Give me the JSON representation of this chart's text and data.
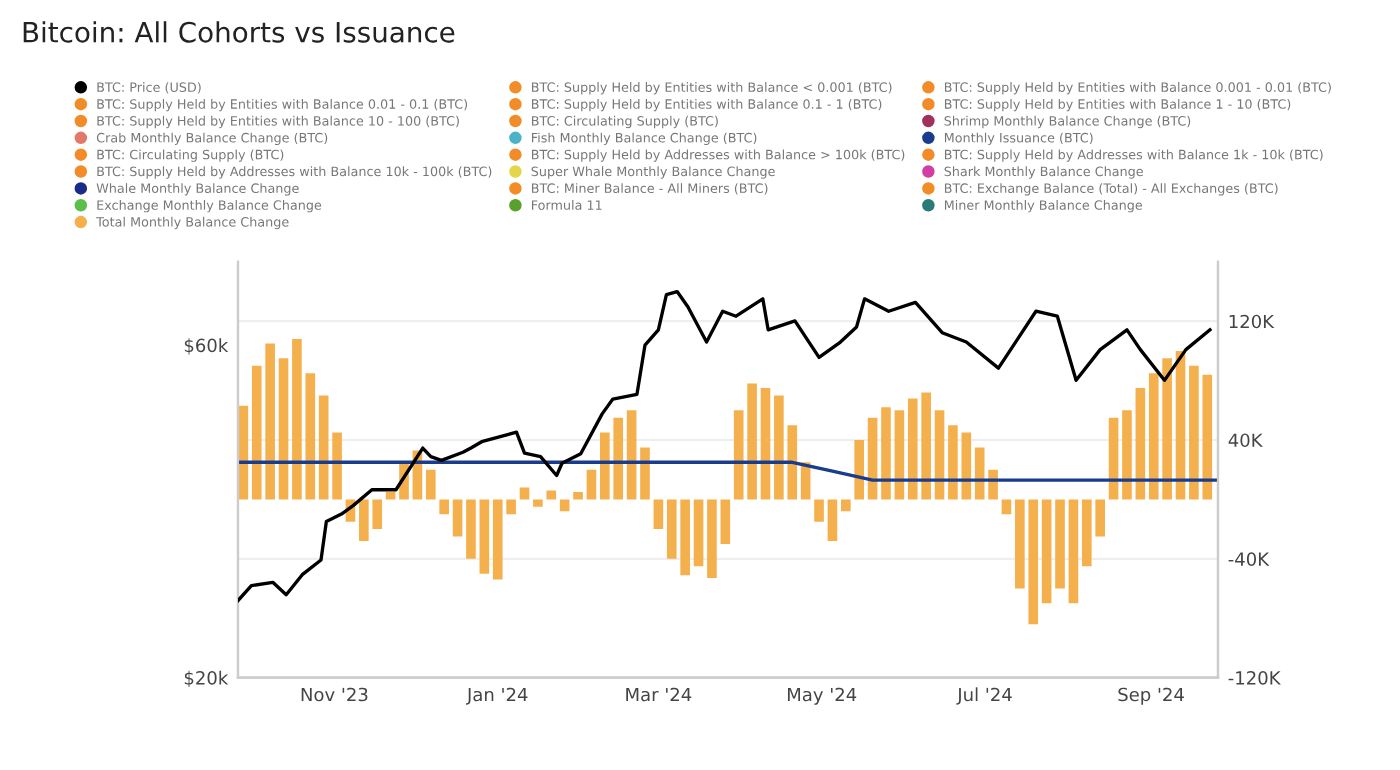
{
  "chart_data": {
    "type": "line",
    "title": "Bitcoin: All Cohorts vs Issuance",
    "xlim": [
      "2023-09-26",
      "2024-09-26"
    ],
    "xticks": [
      {
        "value": "2023-11-01",
        "label": "Nov '23"
      },
      {
        "value": "2024-01-01",
        "label": "Jan '24"
      },
      {
        "value": "2024-03-01",
        "label": "Mar '24"
      },
      {
        "value": "2024-05-01",
        "label": "May '24"
      },
      {
        "value": "2024-07-01",
        "label": "Jul '24"
      },
      {
        "value": "2024-09-01",
        "label": "Sep '24"
      }
    ],
    "log": "y",
    "ylim": [
      20000,
      79000
    ],
    "yticks": [
      {
        "value": 20000,
        "label": "$20k"
      },
      {
        "value": 60000,
        "label": "$60k"
      }
    ],
    "y2lim": [
      -120000,
      160000
    ],
    "y2ticks": [
      {
        "value": -120000,
        "label": "-120K"
      },
      {
        "value": -40000,
        "label": "-40K"
      },
      {
        "value": 40000,
        "label": "40K"
      },
      {
        "value": 120000,
        "label": "120K"
      }
    ],
    "grid": "y",
    "legend": "top",
    "series": [
      {
        "name": "BTC: Price (USD)",
        "color": "#000000",
        "x": [
          "2023-09-26",
          "2023-10-01",
          "2023-10-09",
          "2023-10-14",
          "2023-10-20",
          "2023-10-27",
          "2023-10-29",
          "2023-11-04",
          "2023-11-08",
          "2023-11-15",
          "2023-11-24",
          "2023-12-04",
          "2023-12-07",
          "2023-12-11",
          "2023-12-19",
          "2023-12-22",
          "2023-12-26",
          "2024-01-08",
          "2024-01-11",
          "2024-01-17",
          "2024-01-23",
          "2024-01-25",
          "2024-02-01",
          "2024-02-09",
          "2024-02-13",
          "2024-02-22",
          "2024-02-25",
          "2024-03-01",
          "2024-03-04",
          "2024-03-08",
          "2024-03-12",
          "2024-03-19",
          "2024-03-25",
          "2024-03-30",
          "2024-04-09",
          "2024-04-11",
          "2024-04-21",
          "2024-04-30",
          "2024-05-08",
          "2024-05-14",
          "2024-05-17",
          "2024-05-26",
          "2024-06-05",
          "2024-06-15",
          "2024-06-24",
          "2024-07-06",
          "2024-07-20",
          "2024-07-28",
          "2024-08-04",
          "2024-08-13",
          "2024-08-23",
          "2024-08-28",
          "2024-09-06",
          "2024-09-14",
          "2024-09-23"
        ],
        "values": [
          25800,
          27100,
          27400,
          26300,
          28100,
          29500,
          33500,
          34400,
          35300,
          37200,
          37200,
          42700,
          41500,
          41000,
          42100,
          42700,
          43600,
          45000,
          42000,
          41500,
          39000,
          40600,
          41900,
          47800,
          50200,
          51000,
          60000,
          63100,
          70900,
          71600,
          68100,
          60600,
          67100,
          66000,
          69900,
          63100,
          65000,
          57600,
          60600,
          63700,
          69900,
          67100,
          69100,
          62500,
          60600,
          55600,
          67100,
          66000,
          53400,
          59100,
          63100,
          59100,
          53400,
          59100,
          63100
        ]
      },
      {
        "name": "BTC: Supply Held by Entities with Balance 0.01 - 0.1 (BTC)",
        "color": "#f28c28"
      },
      {
        "name": "BTC: Supply Held by Entities with Balance 10 - 100 (BTC)",
        "color": "#f28c28"
      },
      {
        "name": "Crab Monthly Balance Change (BTC)",
        "color": "#e2786a"
      },
      {
        "name": "BTC: Circulating Supply (BTC)",
        "color": "#f28c28"
      },
      {
        "name": "BTC: Supply Held by Addresses with Balance 10k - 100k (BTC)",
        "color": "#f28c28"
      },
      {
        "name": "Whale Monthly Balance Change",
        "color": "#1c2a8a"
      },
      {
        "name": "Exchange Monthly Balance Change",
        "color": "#5cbf4c"
      },
      {
        "name": "Total Monthly Balance Change",
        "color": "#f5b04e",
        "type": "bar",
        "axis": "y2",
        "x": [
          "2023-09-28",
          "2023-10-03",
          "2023-10-08",
          "2023-10-13",
          "2023-10-18",
          "2023-10-23",
          "2023-10-28",
          "2023-11-02",
          "2023-11-07",
          "2023-11-12",
          "2023-11-17",
          "2023-11-22",
          "2023-11-27",
          "2023-12-02",
          "2023-12-07",
          "2023-12-12",
          "2023-12-17",
          "2023-12-22",
          "2023-12-27",
          "2024-01-01",
          "2024-01-06",
          "2024-01-11",
          "2024-01-16",
          "2024-01-21",
          "2024-01-26",
          "2024-01-31",
          "2024-02-05",
          "2024-02-10",
          "2024-02-15",
          "2024-02-20",
          "2024-02-25",
          "2024-03-01",
          "2024-03-06",
          "2024-03-11",
          "2024-03-16",
          "2024-03-21",
          "2024-03-26",
          "2024-03-31",
          "2024-04-05",
          "2024-04-10",
          "2024-04-15",
          "2024-04-20",
          "2024-04-25",
          "2024-04-30",
          "2024-05-05",
          "2024-05-10",
          "2024-05-15",
          "2024-05-20",
          "2024-05-25",
          "2024-05-30",
          "2024-06-04",
          "2024-06-09",
          "2024-06-14",
          "2024-06-19",
          "2024-06-24",
          "2024-06-29",
          "2024-07-04",
          "2024-07-09",
          "2024-07-14",
          "2024-07-19",
          "2024-07-24",
          "2024-07-29",
          "2024-08-03",
          "2024-08-08",
          "2024-08-13",
          "2024-08-18",
          "2024-08-23",
          "2024-08-28",
          "2024-09-02",
          "2024-09-07",
          "2024-09-12",
          "2024-09-17",
          "2024-09-22"
        ],
        "values": [
          63000,
          90000,
          105000,
          95000,
          108000,
          85000,
          70000,
          45000,
          -15000,
          -28000,
          -20000,
          5000,
          25000,
          33000,
          20000,
          -10000,
          -25000,
          -40000,
          -50000,
          -54000,
          -10000,
          8000,
          -5000,
          6000,
          -8000,
          5000,
          20000,
          45000,
          55000,
          60000,
          35000,
          -20000,
          -40000,
          -51000,
          -45000,
          -53000,
          -30000,
          60000,
          78000,
          75000,
          70000,
          50000,
          25000,
          -15000,
          -28000,
          -8000,
          40000,
          55000,
          62000,
          60000,
          68000,
          72000,
          60000,
          50000,
          45000,
          35000,
          20000,
          -10000,
          -60000,
          -84000,
          -70000,
          -60000,
          -70000,
          -45000,
          -25000,
          55000,
          60000,
          75000,
          85000,
          95000,
          100000,
          90000,
          84000
        ]
      },
      {
        "name": "BTC: Supply Held by Entities with Balance < 0.001 (BTC)",
        "color": "#f28c28"
      },
      {
        "name": "BTC: Supply Held by Entities with Balance 0.1 - 1 (BTC)",
        "color": "#f28c28"
      },
      {
        "name": "BTC: Circulating Supply (BTC)",
        "color": "#f28c28"
      },
      {
        "name": "Fish Monthly Balance Change (BTC)",
        "color": "#4bb3c8"
      },
      {
        "name": "BTC: Supply Held by Addresses with Balance > 100k (BTC)",
        "color": "#f28c28"
      },
      {
        "name": "Super Whale Monthly Balance Change",
        "color": "#e3d64a"
      },
      {
        "name": "BTC: Miner Balance - All Miners (BTC)",
        "color": "#f28c28"
      },
      {
        "name": "Formula 11",
        "color": "#5aa02c"
      },
      {
        "name": "BTC: Supply Held by Entities with Balance 0.001 - 0.01 (BTC)",
        "color": "#f28c28"
      },
      {
        "name": "BTC: Supply Held by Entities with Balance 1 - 10 (BTC)",
        "color": "#f28c28"
      },
      {
        "name": "Shrimp Monthly Balance Change (BTC)",
        "color": "#a3305c"
      },
      {
        "name": "Monthly Issuance (BTC)",
        "color": "#1a3c8c",
        "type": "line",
        "axis": "y2",
        "x": [
          "2023-09-26",
          "2024-04-20",
          "2024-05-05",
          "2024-05-20",
          "2024-09-26"
        ],
        "values": [
          25000,
          25000,
          19000,
          13000,
          13000
        ]
      },
      {
        "name": "BTC: Supply Held by Addresses with Balance 1k - 10k (BTC)",
        "color": "#f28c28"
      },
      {
        "name": "Shark Monthly Balance Change",
        "color": "#d13fa6"
      },
      {
        "name": "BTC: Exchange Balance (Total) - All Exchanges (BTC)",
        "color": "#f28c28"
      },
      {
        "name": "Miner Monthly Balance Change",
        "color": "#2a7a78"
      }
    ]
  }
}
